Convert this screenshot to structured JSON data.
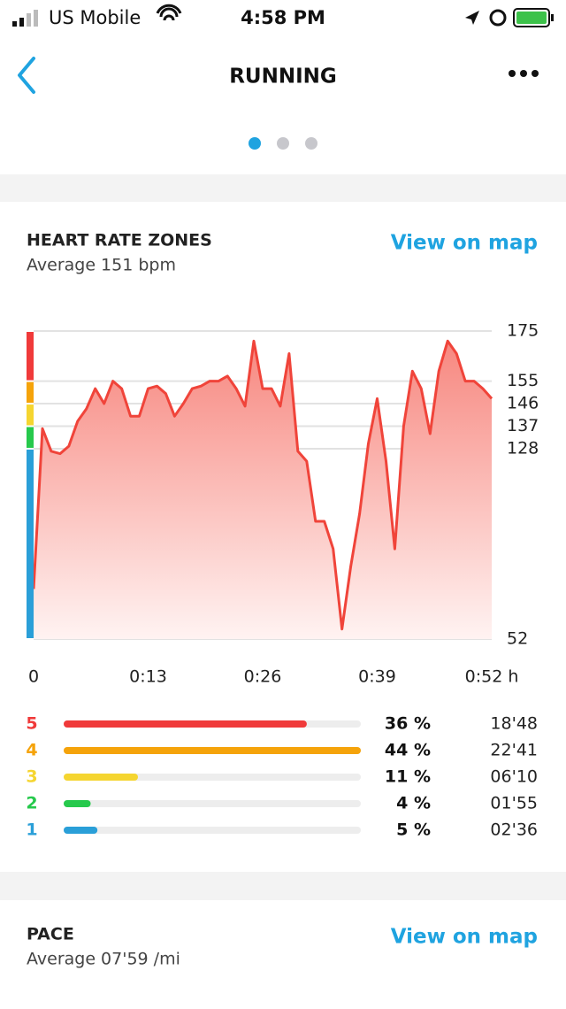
{
  "status_bar": {
    "carrier": "US Mobile",
    "time": "4:58 PM"
  },
  "header": {
    "title": "RUNNING"
  },
  "heart_rate": {
    "title": "HEART RATE ZONES",
    "subtitle": "Average 151 bpm",
    "link": "View on map"
  },
  "chart_data": {
    "type": "area",
    "x": [
      0,
      1,
      2,
      3,
      4,
      5,
      6,
      7,
      8,
      9,
      10,
      11,
      12,
      13,
      14,
      15,
      16,
      17,
      18,
      19,
      20,
      21,
      22,
      23,
      24,
      25,
      26,
      27,
      28,
      29,
      30,
      31,
      32,
      33,
      34,
      35,
      36,
      37,
      38,
      39,
      40,
      41,
      42,
      43,
      44,
      45,
      46,
      47,
      48,
      49,
      50,
      51,
      52
    ],
    "series": [
      {
        "color": "#f0443a",
        "values": [
          72,
          136,
          127,
          126,
          129,
          139,
          144,
          152,
          146,
          155,
          152,
          141,
          141,
          152,
          153,
          150,
          141,
          146,
          152,
          153,
          155,
          155,
          157,
          152,
          145,
          171,
          152,
          152,
          145,
          166,
          127,
          123,
          99,
          99,
          88,
          56,
          81,
          102,
          130,
          148,
          123,
          88,
          137,
          159,
          152,
          134,
          159,
          171,
          166,
          155,
          155,
          152,
          148
        ]
      }
    ],
    "xlim": [
      0,
      52
    ],
    "xticks": [
      0,
      {
        "value": 13,
        "label": "0:13"
      },
      {
        "value": 26,
        "label": "0:26"
      },
      {
        "value": 39,
        "label": "0:39"
      },
      {
        "value": 52,
        "label": "0:52 h"
      }
    ],
    "ylim": [
      52,
      175
    ],
    "yticks": [
      52,
      128,
      137,
      146,
      155,
      175
    ],
    "grid": true
  },
  "zones": {
    "names": [
      5,
      4,
      3,
      2,
      1
    ],
    "values": [
      36,
      44,
      11,
      4,
      5
    ],
    "value_labels": [
      "36 %",
      "44 %",
      "11 %",
      "4 %",
      "5 %"
    ],
    "times": [
      "18'48",
      "22'41",
      "06'10",
      "01'55",
      "02'36"
    ],
    "colors": [
      "#f03a3a",
      "#f5a30a",
      "#f5d530",
      "#26c94c",
      "#2a9fd8"
    ]
  },
  "pace": {
    "title": "PACE",
    "subtitle": "Average 07'59 /mi",
    "link": "View on map"
  }
}
